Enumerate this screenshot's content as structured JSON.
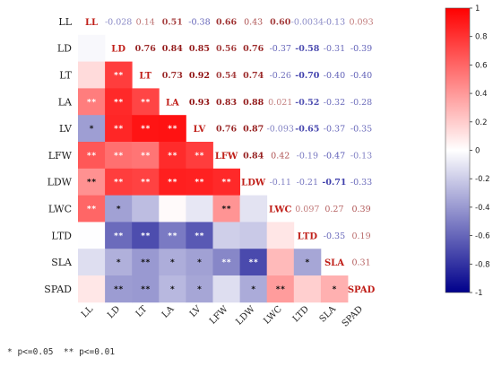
{
  "chart_data": {
    "type": "heatmap",
    "variables": [
      "LL",
      "LD",
      "LT",
      "LA",
      "LV",
      "LFW",
      "LDW",
      "LWC",
      "LTD",
      "SLA",
      "SPAD"
    ],
    "lower_triangle": "significance",
    "upper_triangle": "correlation coefficient",
    "colorbar": {
      "range": [
        -1,
        1
      ],
      "ticks": [
        "1",
        "0.8",
        "0.6",
        "0.4",
        "0.2",
        "0",
        "-0.2",
        "-0.4",
        "-0.6",
        "-0.8",
        "-1"
      ],
      "colors": {
        "positive": "#ff0000",
        "zero": "#ffffff",
        "negative": "#00008b"
      }
    },
    "matrix": [
      [
        1,
        -0.028,
        0.14,
        0.51,
        -0.38,
        0.66,
        0.43,
        0.6,
        -0.0034,
        -0.13,
        0.093
      ],
      [
        -0.028,
        1,
        0.76,
        0.84,
        0.85,
        0.56,
        0.76,
        -0.37,
        -0.58,
        -0.31,
        -0.39
      ],
      [
        0.14,
        0.76,
        1,
        0.73,
        0.92,
        0.54,
        0.74,
        -0.26,
        -0.7,
        -0.4,
        -0.4
      ],
      [
        0.51,
        0.84,
        0.73,
        1,
        0.93,
        0.83,
        0.88,
        0.021,
        -0.52,
        -0.32,
        -0.28
      ],
      [
        -0.38,
        0.85,
        0.92,
        0.93,
        1,
        0.76,
        0.87,
        -0.093,
        -0.65,
        -0.37,
        -0.35
      ],
      [
        0.66,
        0.56,
        0.54,
        0.83,
        0.76,
        1,
        0.84,
        0.42,
        -0.19,
        -0.47,
        -0.13
      ],
      [
        0.43,
        0.76,
        0.74,
        0.88,
        0.87,
        0.84,
        1,
        -0.11,
        -0.21,
        -0.71,
        -0.33
      ],
      [
        0.6,
        -0.37,
        -0.26,
        0.021,
        -0.093,
        0.42,
        -0.11,
        1,
        0.097,
        0.27,
        0.39
      ],
      [
        -0.0034,
        -0.58,
        -0.7,
        -0.52,
        -0.65,
        -0.19,
        -0.21,
        0.097,
        1,
        -0.35,
        0.19
      ],
      [
        -0.13,
        -0.31,
        -0.4,
        -0.32,
        -0.37,
        -0.47,
        -0.71,
        0.27,
        -0.35,
        1,
        0.31
      ],
      [
        0.093,
        -0.39,
        -0.4,
        -0.28,
        -0.35,
        -0.13,
        -0.33,
        0.39,
        0.19,
        0.31,
        1
      ]
    ],
    "value_labels": [
      [
        "",
        "-0.028",
        "0.14",
        "0.51",
        "-0.38",
        "0.66",
        "0.43",
        "0.60",
        "-0.0034",
        "-0.13",
        "0.093"
      ],
      [
        "",
        "",
        "0.76",
        "0.84",
        "0.85",
        "0.56",
        "0.76",
        "-0.37",
        "-0.58",
        "-0.31",
        "-0.39"
      ],
      [
        "",
        "",
        "",
        "0.73",
        "0.92",
        "0.54",
        "0.74",
        "-0.26",
        "-0.70",
        "-0.40",
        "-0.40"
      ],
      [
        "",
        "",
        "",
        "",
        "0.93",
        "0.83",
        "0.88",
        "0.021",
        "-0.52",
        "-0.32",
        "-0.28"
      ],
      [
        "",
        "",
        "",
        "",
        "",
        "0.76",
        "0.87",
        "-0.093",
        "-0.65",
        "-0.37",
        "-0.35"
      ],
      [
        "",
        "",
        "",
        "",
        "",
        "",
        "0.84",
        "0.42",
        "-0.19",
        "-0.47",
        "-0.13"
      ],
      [
        "",
        "",
        "",
        "",
        "",
        "",
        "",
        "-0.11",
        "-0.21",
        "-0.71",
        "-0.33"
      ],
      [
        "",
        "",
        "",
        "",
        "",
        "",
        "",
        "",
        "0.097",
        "0.27",
        "0.39"
      ],
      [
        "",
        "",
        "",
        "",
        "",
        "",
        "",
        "",
        "",
        "-0.35",
        "0.19"
      ],
      [
        "",
        "",
        "",
        "",
        "",
        "",
        "",
        "",
        "",
        "",
        "0.31"
      ],
      [
        "",
        "",
        "",
        "",
        "",
        "",
        "",
        "",
        "",
        "",
        ""
      ]
    ],
    "significance": [
      [
        "",
        "",
        "",
        "",
        "",
        "",
        "",
        "",
        "",
        "",
        ""
      ],
      [
        "",
        "",
        "",
        "",
        "",
        "",
        "",
        "",
        "",
        "",
        ""
      ],
      [
        "",
        "**",
        "",
        "",
        "",
        "",
        "",
        "",
        "",
        "",
        ""
      ],
      [
        "**",
        "**",
        "**",
        "",
        "",
        "",
        "",
        "",
        "",
        "",
        ""
      ],
      [
        "*",
        "**",
        "**",
        "**",
        "",
        "",
        "",
        "",
        "",
        "",
        ""
      ],
      [
        "**",
        "**",
        "**",
        "**",
        "**",
        "",
        "",
        "",
        "",
        "",
        ""
      ],
      [
        "**",
        "**",
        "**",
        "**",
        "**",
        "**",
        "",
        "",
        "",
        "",
        ""
      ],
      [
        "**",
        "*",
        "",
        "",
        "",
        "**",
        "",
        "",
        "",
        "",
        ""
      ],
      [
        "",
        "**",
        "**",
        "**",
        "**",
        "",
        "",
        "",
        "",
        "",
        ""
      ],
      [
        "",
        "*",
        "**",
        "*",
        "*",
        "**",
        "**",
        "",
        "*",
        "",
        ""
      ],
      [
        "",
        "**",
        "**",
        "*",
        "*",
        "",
        "*",
        "**",
        "",
        "*",
        ""
      ]
    ]
  },
  "footnote": "* p<=0.05  ** p<=0.01"
}
